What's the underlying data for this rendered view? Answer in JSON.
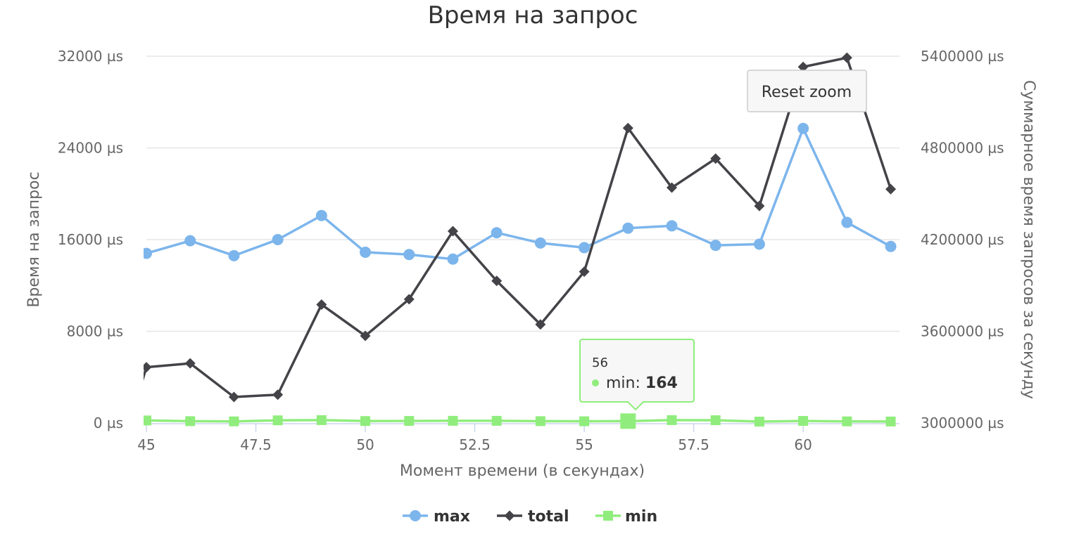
{
  "chart_data": {
    "type": "line",
    "title": "Время на запрос",
    "xlabel": "Момент времени (в секундах)",
    "ylabel_left": "Время на запрос",
    "ylabel_right": "Суммарное время запросов за секунду",
    "xlim": [
      45,
      62.2
    ],
    "x_ticks": [
      "45",
      "47.5",
      "50",
      "52.5",
      "55",
      "57.5",
      "60"
    ],
    "ylim_left": [
      0,
      32000
    ],
    "ylim_right": [
      3000000,
      5400000
    ],
    "y_ticks_left": [
      "0 µs",
      "8000 µs",
      "16000 µs",
      "24000 µs",
      "32000 µs"
    ],
    "y_ticks_right": [
      "3000000 µs",
      "3600000 µs",
      "4200000 µs",
      "4800000 µs",
      "5400000 µs"
    ],
    "x": [
      45,
      46,
      47,
      48,
      49,
      50,
      51,
      52,
      53,
      54,
      55,
      56,
      57,
      58,
      59,
      60,
      61,
      62
    ],
    "series": [
      {
        "name": "max",
        "axis": "left",
        "marker": "circle",
        "color": "#7cb5ec",
        "values": [
          14800,
          15900,
          14600,
          16000,
          18100,
          14900,
          14700,
          14300,
          16600,
          15700,
          15300,
          17000,
          17200,
          15500,
          15600,
          25700,
          17500,
          15400
        ]
      },
      {
        "name": "total",
        "axis": "right",
        "marker": "diamond",
        "color": "#434348",
        "values": [
          3365000,
          3390000,
          3170000,
          3185000,
          3775000,
          3570000,
          3810000,
          4255000,
          3930000,
          3645000,
          3990000,
          4930000,
          4540000,
          4730000,
          4420000,
          5330000,
          5390000,
          4530000
        ],
        "lead_in": {
          "x": 44.9,
          "value": 3270000
        }
      },
      {
        "name": "min",
        "axis": "left",
        "marker": "square",
        "color": "#90ed7d",
        "values": [
          220,
          160,
          140,
          230,
          250,
          170,
          180,
          190,
          190,
          160,
          150,
          164,
          250,
          240,
          120,
          180,
          140,
          130
        ]
      }
    ],
    "legend_position": "bottom-center",
    "grid": true
  },
  "reset_button": {
    "label": "Reset zoom"
  },
  "tooltip": {
    "header": "56",
    "series": "min",
    "label": "min: ",
    "value": "164",
    "point_x": 56,
    "point_value": 164
  }
}
